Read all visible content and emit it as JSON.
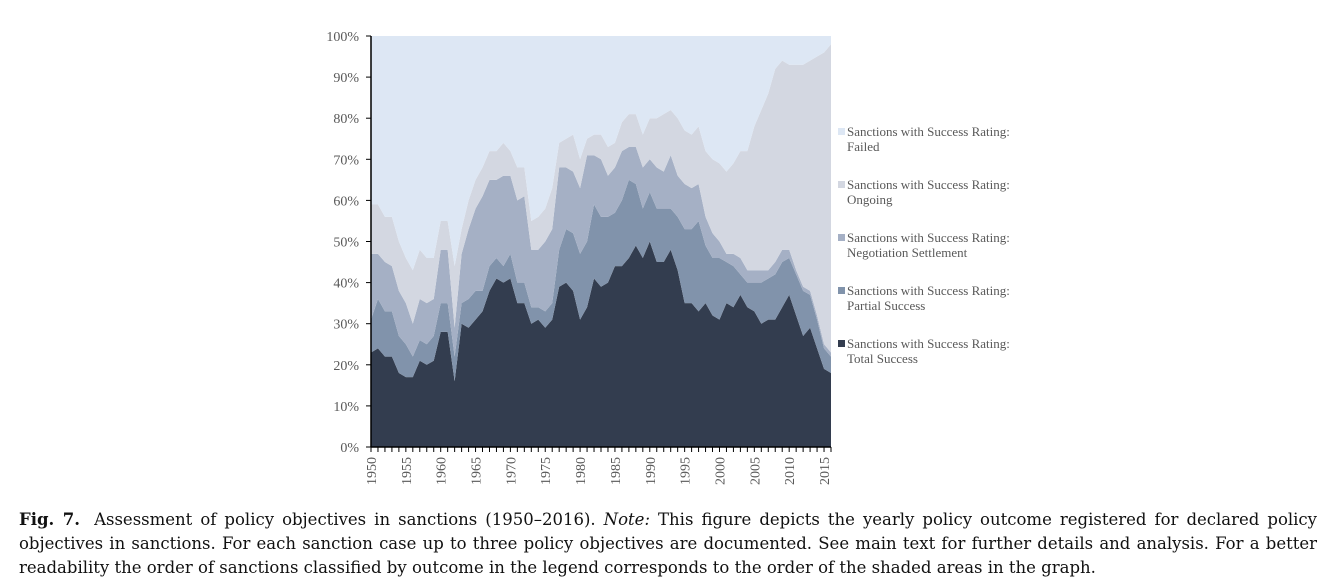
{
  "chart_data": {
    "type": "area",
    "stacking": "percent",
    "x": [
      1950,
      1951,
      1952,
      1953,
      1954,
      1955,
      1956,
      1957,
      1958,
      1959,
      1960,
      1961,
      1962,
      1963,
      1964,
      1965,
      1966,
      1967,
      1968,
      1969,
      1970,
      1971,
      1972,
      1973,
      1974,
      1975,
      1976,
      1977,
      1978,
      1979,
      1980,
      1981,
      1982,
      1983,
      1984,
      1985,
      1986,
      1987,
      1988,
      1989,
      1990,
      1991,
      1992,
      1993,
      1994,
      1995,
      1996,
      1997,
      1998,
      1999,
      2000,
      2001,
      2002,
      2003,
      2004,
      2005,
      2006,
      2007,
      2008,
      2009,
      2010,
      2011,
      2012,
      2013,
      2014,
      2015,
      2016
    ],
    "x_tick_labels": [
      "1950",
      "1955",
      "1960",
      "1965",
      "1970",
      "1975",
      "1980",
      "1985",
      "1990",
      "1995",
      "2000",
      "2005",
      "2010",
      "2015"
    ],
    "y_tick_labels": [
      "0%",
      "10%",
      "20%",
      "30%",
      "40%",
      "50%",
      "60%",
      "70%",
      "80%",
      "90%",
      "100%"
    ],
    "ylim": [
      0,
      100
    ],
    "legend_position": "right",
    "series": [
      {
        "name": "Sanctions with Success Rating: Total Success",
        "color": "#333d4f",
        "values": [
          23,
          24,
          22,
          22,
          18,
          17,
          17,
          21,
          20,
          21,
          28,
          28,
          16,
          30,
          29,
          31,
          33,
          38,
          41,
          40,
          41,
          35,
          35,
          30,
          31,
          29,
          31,
          39,
          40,
          38,
          31,
          34,
          41,
          39,
          40,
          44,
          44,
          46,
          49,
          46,
          50,
          45,
          45,
          48,
          43,
          35,
          35,
          33,
          35,
          32,
          31,
          35,
          34,
          37,
          34,
          33,
          30,
          31,
          31,
          34,
          37,
          32,
          27,
          29,
          24,
          19,
          18
        ]
      },
      {
        "name": "Sanctions with Success Rating: Partial Success",
        "color": "#8193ab",
        "values": [
          8,
          12,
          11,
          11,
          9,
          8,
          5,
          5,
          5,
          6,
          7,
          7,
          6,
          5,
          7,
          7,
          5,
          6,
          5,
          4,
          6,
          5,
          5,
          4,
          3,
          4,
          4,
          9,
          13,
          14,
          16,
          16,
          18,
          17,
          16,
          13,
          16,
          19,
          15,
          12,
          12,
          13,
          13,
          10,
          13,
          18,
          18,
          22,
          14,
          14,
          15,
          10,
          10,
          5,
          6,
          7,
          10,
          10,
          11,
          11,
          9,
          10,
          11,
          8,
          7,
          5,
          4
        ]
      },
      {
        "name": "Sanctions with Success Rating: Negotiation Settlement",
        "color": "#a5b0c5",
        "values": [
          16,
          11,
          12,
          11,
          11,
          10,
          8,
          10,
          10,
          9,
          13,
          13,
          7,
          12,
          17,
          20,
          23,
          21,
          19,
          22,
          19,
          20,
          21,
          14,
          14,
          17,
          18,
          20,
          15,
          15,
          16,
          21,
          12,
          14,
          10,
          11,
          12,
          8,
          9,
          10,
          8,
          10,
          9,
          13,
          10,
          11,
          10,
          9,
          7,
          6,
          4,
          2,
          3,
          4,
          3,
          3,
          3,
          2,
          3,
          3,
          2,
          1,
          1,
          1,
          1,
          1,
          1
        ]
      },
      {
        "name": "Sanctions with Success Rating: Ongoing",
        "color": "#d3d7e1",
        "values": [
          12,
          12,
          11,
          12,
          12,
          11,
          13,
          12,
          11,
          10,
          7,
          7,
          15,
          6,
          7,
          7,
          7,
          7,
          7,
          8,
          6,
          8,
          7,
          7,
          8,
          8,
          10,
          6,
          7,
          9,
          7,
          4,
          5,
          6,
          7,
          6,
          7,
          8,
          8,
          8,
          10,
          12,
          14,
          11,
          14,
          13,
          13,
          14,
          16,
          18,
          19,
          20,
          22,
          26,
          29,
          35,
          39,
          43,
          47,
          46,
          45,
          50,
          54,
          56,
          63,
          71,
          75
        ]
      },
      {
        "name": "Sanctions with Success Rating: Failed",
        "color": "#dde7f4",
        "values": [
          41,
          41,
          44,
          44,
          50,
          54,
          57,
          52,
          54,
          54,
          45,
          45,
          56,
          47,
          40,
          35,
          32,
          28,
          28,
          26,
          28,
          32,
          32,
          45,
          44,
          42,
          37,
          26,
          25,
          24,
          30,
          25,
          24,
          24,
          27,
          26,
          21,
          19,
          19,
          24,
          20,
          20,
          19,
          18,
          20,
          23,
          24,
          22,
          28,
          30,
          31,
          33,
          31,
          28,
          28,
          22,
          18,
          14,
          8,
          6,
          7,
          7,
          7,
          6,
          5,
          4,
          2
        ]
      }
    ]
  },
  "caption": {
    "fig_label": "Fig. 7.",
    "text_1": "Assessment of policy objectives in sanctions (1950–2016).",
    "note_label": "Note:",
    "text_2": "This figure depicts the yearly policy outcome registered for declared policy objectives in sanctions. For each sanction case up to three policy objectives are documented. See main text for further details and analysis. For a better readability the order of sanctions classified by outcome in the legend corresponds to the order of the shaded areas in the graph."
  }
}
